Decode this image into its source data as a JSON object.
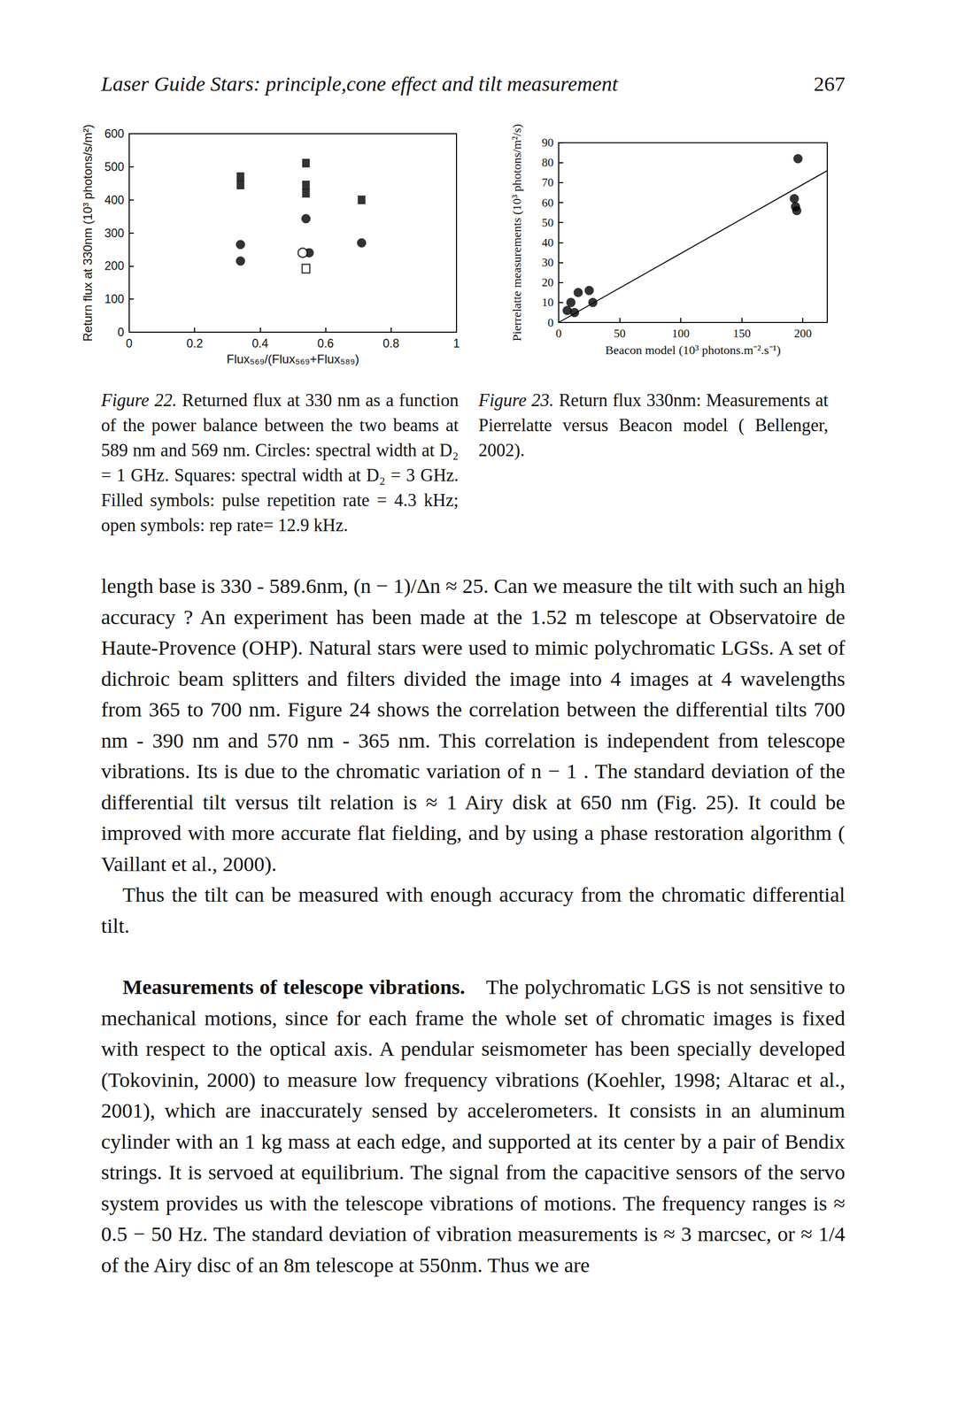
{
  "header": {
    "title": "Laser Guide Stars: principle,cone effect and tilt measurement",
    "page": "267"
  },
  "chart_data": [
    {
      "type": "scatter",
      "x_label": "Flux₅₆₉/(Flux₅₆₉+Flux₅₈₉)",
      "y_label": "Return flux at 330nm (10³ photons/s/m²)",
      "xlim": [
        0,
        1
      ],
      "xticks": [
        0,
        0.2,
        0.4,
        0.6,
        0.8,
        1
      ],
      "ylim": [
        0,
        600
      ],
      "yticks": [
        0,
        100,
        200,
        300,
        400,
        500,
        600
      ],
      "grid": false,
      "series": [
        {
          "marker": "circle",
          "color": "#000000",
          "x": [
            0.34,
            0.34,
            0.54,
            0.55,
            0.71
          ],
          "values": [
            265,
            215,
            343,
            240,
            270
          ]
        },
        {
          "marker": "square",
          "color": "#000000",
          "x": [
            0.34,
            0.34,
            0.54,
            0.54,
            0.54,
            0.71
          ],
          "values": [
            470,
            445,
            511,
            445,
            420,
            400
          ]
        },
        {
          "marker": "open circle",
          "color": "#000000",
          "x": [
            0.53
          ],
          "values": [
            240
          ]
        },
        {
          "marker": "open square",
          "color": "#000000",
          "x": [
            0.54
          ],
          "values": [
            192
          ]
        }
      ]
    },
    {
      "type": "scatter",
      "x_label": "Beacon model (10³ photons.m⁻².s⁻¹)",
      "y_label": "Pierrelatte measurements (10³ photons/m²/s)",
      "xlim": [
        0,
        220
      ],
      "xticks": [
        0,
        50,
        100,
        150,
        200
      ],
      "ylim": [
        0,
        90
      ],
      "yticks": [
        0,
        10,
        20,
        30,
        40,
        50,
        60,
        70,
        80,
        90
      ],
      "grid": false,
      "series": [
        {
          "marker": "circle",
          "color": "#000000",
          "x": [
            7,
            10,
            16,
            25,
            28,
            13,
            196,
            193,
            194,
            195
          ],
          "values": [
            6,
            10,
            15,
            16,
            10,
            5,
            82,
            62,
            58,
            56
          ]
        },
        {
          "type": "line",
          "color": "#000000",
          "x": [
            0,
            220
          ],
          "values": [
            0,
            76
          ]
        }
      ]
    }
  ],
  "captions": [
    {
      "label": "Figure 22.",
      "text": "Returned flux at 330 nm as a function of the power balance between the two beams at 589 nm and 569 nm. Circles: spectral width at D₂ = 1 GHz. Squares: spectral width at D₂ = 3 GHz. Filled symbols: pulse repetition rate = 4.3 kHz; open symbols: rep rate= 12.9 kHz."
    },
    {
      "label": "Figure 23.",
      "text": "Return flux 330nm: Measurements at Pierrelatte versus Beacon model ( Bellenger, 2002)."
    }
  ],
  "body": [
    {
      "text": "length base is 330 - 589.6nm, (n − 1)/Δn ≈ 25. Can we measure the tilt with such an high accuracy ? An experiment has been made at the 1.52 m telescope at Observatoire de Haute-Provence (OHP). Natural stars were used to mimic polychromatic LGSs. A set of dichroic beam splitters and filters divided the image into 4 images at 4 wavelengths from 365 to 700 nm. Figure 24 shows the correlation between the differential tilts 700 nm - 390 nm and 570 nm - 365 nm. This correlation is independent from telescope vibrations. Its is due to the chromatic variation of n − 1 . The standard deviation of the differential tilt versus tilt relation is ≈ 1 Airy disk at 650 nm (Fig. 25). It could be improved with more accurate flat fielding, and by using a phase restoration algorithm ( Vaillant et al., 2000)."
    },
    {
      "text": "Thus the tilt can be measured with enough accuracy from the chromatic differential tilt."
    },
    {
      "heading": "Measurements of telescope vibrations.",
      "text": "The polychromatic LGS is not sensitive to mechanical motions, since for each frame the whole set of chromatic images is fixed with respect to the optical axis. A pendular seismometer has been specially developed (Tokovinin, 2000) to measure low frequency vibrations (Koehler, 1998; Altarac et al., 2001), which are inaccurately sensed by accelerometers. It consists in an aluminum cylinder with an 1 kg mass at each edge, and supported at its center by a pair of Bendix strings. It is servoed at equilibrium. The signal from the capacitive sensors of the servo system provides us with the telescope vibrations of motions. The frequency ranges is ≈ 0.5 − 50 Hz. The standard deviation of vibration measurements is ≈ 3 marcsec, or ≈ 1/4 of the Airy disc of an 8m telescope at 550nm. Thus we are"
    }
  ]
}
